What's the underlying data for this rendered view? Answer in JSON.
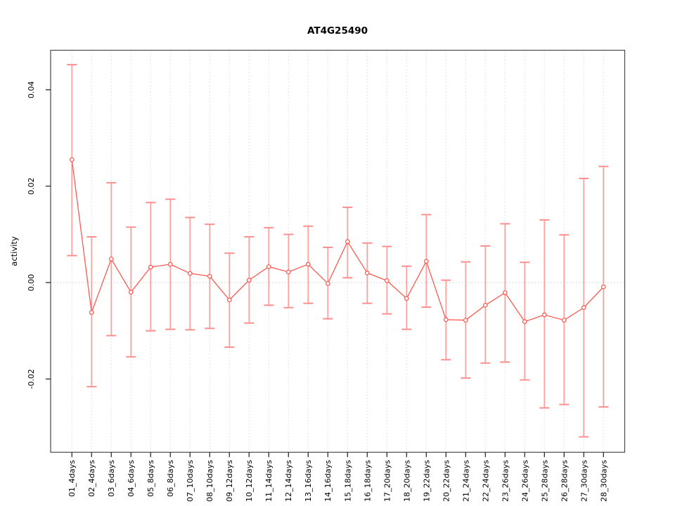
{
  "figure": {
    "background": "#ffffff"
  },
  "chart_data": {
    "type": "line",
    "subtype": "points-with-error-bars",
    "title": "AT4G25490",
    "xlabel": "",
    "ylabel": "activity",
    "legend": "none",
    "grid": {
      "vertical_dotted": true,
      "horizontal_zero_dotted": true
    },
    "xlim": [
      -0.08,
      29.08
    ],
    "ylim": [
      -0.0352,
      0.0482
    ],
    "yticks": [
      {
        "value": -0.02,
        "label": "-0.02"
      },
      {
        "value": 0.0,
        "label": "0.00"
      },
      {
        "value": 0.02,
        "label": "0.02"
      },
      {
        "value": 0.04,
        "label": "0.04"
      }
    ],
    "zero_line": 0.0,
    "categories": [
      "01_4days",
      "02_4days",
      "03_6days",
      "04_6days",
      "05_8days",
      "06_8days",
      "07_10days",
      "08_10days",
      "09_12days",
      "10_12days",
      "11_14days",
      "12_14days",
      "13_16days",
      "14_16days",
      "15_18days",
      "16_18days",
      "17_20days",
      "18_20days",
      "19_22days",
      "20_22days",
      "21_24days",
      "22_24days",
      "23_26days",
      "24_26days",
      "25_28days",
      "26_28days",
      "27_30days",
      "28_30days"
    ],
    "series": [
      {
        "name": "activity",
        "values": [
          0.0255,
          -0.0062,
          0.0049,
          -0.002,
          0.0032,
          0.0038,
          0.0019,
          0.0013,
          -0.0036,
          0.0005,
          0.0033,
          0.0022,
          0.0038,
          -0.0002,
          0.0085,
          0.002,
          0.0004,
          -0.0033,
          0.0044,
          -0.0077,
          -0.0078,
          -0.0047,
          -0.0021,
          -0.0081,
          -0.0067,
          -0.0078,
          -0.0052,
          -0.0009
        ],
        "upper": [
          0.0452,
          0.0095,
          0.0207,
          0.0115,
          0.0166,
          0.0173,
          0.0135,
          0.0121,
          0.0061,
          0.0095,
          0.0114,
          0.01,
          0.0117,
          0.0073,
          0.0156,
          0.0082,
          0.0075,
          0.0034,
          0.0141,
          0.0005,
          0.0043,
          0.0076,
          0.0122,
          0.0042,
          0.013,
          0.0099,
          0.0216,
          0.0241
        ],
        "lower": [
          0.0056,
          -0.0216,
          -0.011,
          -0.0154,
          -0.01,
          -0.0097,
          -0.0098,
          -0.0095,
          -0.0134,
          -0.0084,
          -0.0047,
          -0.0052,
          -0.0043,
          -0.0075,
          0.001,
          -0.0043,
          -0.0065,
          -0.0097,
          -0.0051,
          -0.016,
          -0.0198,
          -0.0167,
          -0.0165,
          -0.0202,
          -0.026,
          -0.0253,
          -0.032,
          -0.0258
        ]
      }
    ],
    "colors": {
      "point_and_line": "#f85b52",
      "error_bar": "#ff9d9d",
      "error_cap": "#ff8f8f",
      "grid": "#dcdcdc",
      "zero_line": "#cccccc",
      "box": "#4a4a4a",
      "tick": "#1a1a1a",
      "text": "#000000"
    }
  }
}
